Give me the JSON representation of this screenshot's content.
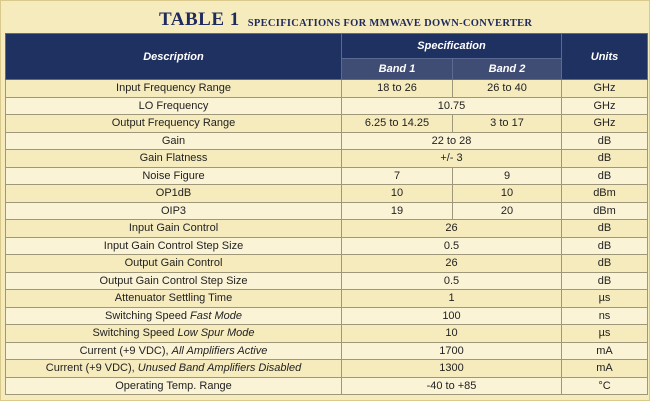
{
  "title": {
    "main": "TABLE 1",
    "sub": "SPECIFICATIONS FOR MMWAVE DOWN-CONVERTER"
  },
  "header": {
    "description": "Description",
    "specification": "Specification",
    "units": "Units",
    "band1": "Band 1",
    "band2": "Band 2"
  },
  "rows": [
    {
      "desc": "Input Frequency Range",
      "desc_italic": "",
      "band1": "18 to 26",
      "band2": "26 to 40",
      "span": "",
      "units": "GHz"
    },
    {
      "desc": "LO Frequency",
      "desc_italic": "",
      "band1": "",
      "band2": "",
      "span": "10.75",
      "units": "GHz"
    },
    {
      "desc": "Output Frequency Range",
      "desc_italic": "",
      "band1": "6.25 to 14.25",
      "band2": "3 to 17",
      "span": "",
      "units": "GHz"
    },
    {
      "desc": "Gain",
      "desc_italic": "",
      "band1": "",
      "band2": "",
      "span": "22 to 28",
      "units": "dB"
    },
    {
      "desc": "Gain Flatness",
      "desc_italic": "",
      "band1": "",
      "band2": "",
      "span": "+/- 3",
      "units": "dB"
    },
    {
      "desc": "Noise Figure",
      "desc_italic": "",
      "band1": "7",
      "band2": "9",
      "span": "",
      "units": "dB"
    },
    {
      "desc": "OP1dB",
      "desc_italic": "",
      "band1": "10",
      "band2": "10",
      "span": "",
      "units": "dBm"
    },
    {
      "desc": "OIP3",
      "desc_italic": "",
      "band1": "19",
      "band2": "20",
      "span": "",
      "units": "dBm"
    },
    {
      "desc": "Input Gain Control",
      "desc_italic": "",
      "band1": "",
      "band2": "",
      "span": "26",
      "units": "dB"
    },
    {
      "desc": "Input Gain Control Step Size",
      "desc_italic": "",
      "band1": "",
      "band2": "",
      "span": "0.5",
      "units": "dB"
    },
    {
      "desc": "Output Gain Control",
      "desc_italic": "",
      "band1": "",
      "band2": "",
      "span": "26",
      "units": "dB"
    },
    {
      "desc": "Output Gain Control Step Size",
      "desc_italic": "",
      "band1": "",
      "band2": "",
      "span": "0.5",
      "units": "dB"
    },
    {
      "desc": "Attenuator Settling Time",
      "desc_italic": "",
      "band1": "",
      "band2": "",
      "span": "1",
      "units": "µs"
    },
    {
      "desc": "Switching Speed ",
      "desc_italic": "Fast Mode",
      "band1": "",
      "band2": "",
      "span": "100",
      "units": "ns"
    },
    {
      "desc": "Switching Speed ",
      "desc_italic": "Low Spur Mode",
      "band1": "",
      "band2": "",
      "span": "10",
      "units": "µs"
    },
    {
      "desc": "Current (+9 VDC), ",
      "desc_italic": "All Amplifiers Active",
      "band1": "",
      "band2": "",
      "span": "1700",
      "units": "mA"
    },
    {
      "desc": "Current (+9 VDC), ",
      "desc_italic": "Unused Band Amplifiers Disabled",
      "band1": "",
      "band2": "",
      "span": "1300",
      "units": "mA"
    },
    {
      "desc": "Operating Temp. Range",
      "desc_italic": "",
      "band1": "",
      "band2": "",
      "span": "-40 to +85",
      "units": "°C"
    }
  ]
}
